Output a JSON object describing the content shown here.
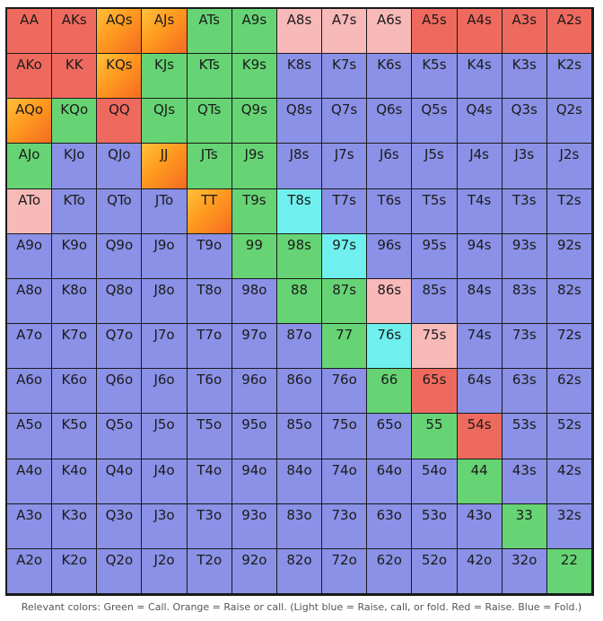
{
  "colors": {
    "fold": "#8a91e6",
    "call": "#66d474",
    "raise": "#ef6a5e",
    "raise_or_call": "#ff9a1f",
    "raise_call_or_fold": "#6ff0ee",
    "light_red": "#f8b9b9"
  },
  "legend": "Relevant colors: Green = Call. Orange = Raise or call. (Light blue = Raise, call, or fold. Red = Raise. Blue = Fold.)",
  "rows": [
    [
      [
        "AA",
        "raise"
      ],
      [
        "AKs",
        "raise"
      ],
      [
        "AQs",
        "rc"
      ],
      [
        "AJs",
        "rc"
      ],
      [
        "ATs",
        "call"
      ],
      [
        "A9s",
        "call"
      ],
      [
        "A8s",
        "mix"
      ],
      [
        "A7s",
        "mix"
      ],
      [
        "A6s",
        "mix"
      ],
      [
        "A5s",
        "raise"
      ],
      [
        "A4s",
        "raise"
      ],
      [
        "A3s",
        "raise"
      ],
      [
        "A2s",
        "raise"
      ]
    ],
    [
      [
        "AKo",
        "raise"
      ],
      [
        "KK",
        "raise"
      ],
      [
        "KQs",
        "rc"
      ],
      [
        "KJs",
        "call"
      ],
      [
        "KTs",
        "call"
      ],
      [
        "K9s",
        "call"
      ],
      [
        "K8s",
        "fold"
      ],
      [
        "K7s",
        "fold"
      ],
      [
        "K6s",
        "fold"
      ],
      [
        "K5s",
        "fold"
      ],
      [
        "K4s",
        "fold"
      ],
      [
        "K3s",
        "fold"
      ],
      [
        "K2s",
        "fold"
      ]
    ],
    [
      [
        "AQo",
        "rc"
      ],
      [
        "KQo",
        "call"
      ],
      [
        "QQ",
        "raise"
      ],
      [
        "QJs",
        "call"
      ],
      [
        "QTs",
        "call"
      ],
      [
        "Q9s",
        "call"
      ],
      [
        "Q8s",
        "fold"
      ],
      [
        "Q7s",
        "fold"
      ],
      [
        "Q6s",
        "fold"
      ],
      [
        "Q5s",
        "fold"
      ],
      [
        "Q4s",
        "fold"
      ],
      [
        "Q3s",
        "fold"
      ],
      [
        "Q2s",
        "fold"
      ]
    ],
    [
      [
        "AJo",
        "call"
      ],
      [
        "KJo",
        "fold"
      ],
      [
        "QJo",
        "fold"
      ],
      [
        "JJ",
        "rc"
      ],
      [
        "JTs",
        "call"
      ],
      [
        "J9s",
        "call"
      ],
      [
        "J8s",
        "fold"
      ],
      [
        "J7s",
        "fold"
      ],
      [
        "J6s",
        "fold"
      ],
      [
        "J5s",
        "fold"
      ],
      [
        "J4s",
        "fold"
      ],
      [
        "J3s",
        "fold"
      ],
      [
        "J2s",
        "fold"
      ]
    ],
    [
      [
        "ATo",
        "mix"
      ],
      [
        "KTo",
        "fold"
      ],
      [
        "QTo",
        "fold"
      ],
      [
        "JTo",
        "fold"
      ],
      [
        "TT",
        "rc"
      ],
      [
        "T9s",
        "call"
      ],
      [
        "T8s",
        "rcf"
      ],
      [
        "T7s",
        "fold"
      ],
      [
        "T6s",
        "fold"
      ],
      [
        "T5s",
        "fold"
      ],
      [
        "T4s",
        "fold"
      ],
      [
        "T3s",
        "fold"
      ],
      [
        "T2s",
        "fold"
      ]
    ],
    [
      [
        "A9o",
        "fold"
      ],
      [
        "K9o",
        "fold"
      ],
      [
        "Q9o",
        "fold"
      ],
      [
        "J9o",
        "fold"
      ],
      [
        "T9o",
        "fold"
      ],
      [
        "99",
        "call"
      ],
      [
        "98s",
        "call"
      ],
      [
        "97s",
        "rcf"
      ],
      [
        "96s",
        "fold"
      ],
      [
        "95s",
        "fold"
      ],
      [
        "94s",
        "fold"
      ],
      [
        "93s",
        "fold"
      ],
      [
        "92s",
        "fold"
      ]
    ],
    [
      [
        "A8o",
        "fold"
      ],
      [
        "K8o",
        "fold"
      ],
      [
        "Q8o",
        "fold"
      ],
      [
        "J8o",
        "fold"
      ],
      [
        "T8o",
        "fold"
      ],
      [
        "98o",
        "fold"
      ],
      [
        "88",
        "call"
      ],
      [
        "87s",
        "call"
      ],
      [
        "86s",
        "mix"
      ],
      [
        "85s",
        "fold"
      ],
      [
        "84s",
        "fold"
      ],
      [
        "83s",
        "fold"
      ],
      [
        "82s",
        "fold"
      ]
    ],
    [
      [
        "A7o",
        "fold"
      ],
      [
        "K7o",
        "fold"
      ],
      [
        "Q7o",
        "fold"
      ],
      [
        "J7o",
        "fold"
      ],
      [
        "T7o",
        "fold"
      ],
      [
        "97o",
        "fold"
      ],
      [
        "87o",
        "fold"
      ],
      [
        "77",
        "call"
      ],
      [
        "76s",
        "rcf"
      ],
      [
        "75s",
        "mix"
      ],
      [
        "74s",
        "fold"
      ],
      [
        "73s",
        "fold"
      ],
      [
        "72s",
        "fold"
      ]
    ],
    [
      [
        "A6o",
        "fold"
      ],
      [
        "K6o",
        "fold"
      ],
      [
        "Q6o",
        "fold"
      ],
      [
        "J6o",
        "fold"
      ],
      [
        "T6o",
        "fold"
      ],
      [
        "96o",
        "fold"
      ],
      [
        "86o",
        "fold"
      ],
      [
        "76o",
        "fold"
      ],
      [
        "66",
        "call"
      ],
      [
        "65s",
        "raise"
      ],
      [
        "64s",
        "fold"
      ],
      [
        "63s",
        "fold"
      ],
      [
        "62s",
        "fold"
      ]
    ],
    [
      [
        "A5o",
        "fold"
      ],
      [
        "K5o",
        "fold"
      ],
      [
        "Q5o",
        "fold"
      ],
      [
        "J5o",
        "fold"
      ],
      [
        "T5o",
        "fold"
      ],
      [
        "95o",
        "fold"
      ],
      [
        "85o",
        "fold"
      ],
      [
        "75o",
        "fold"
      ],
      [
        "65o",
        "fold"
      ],
      [
        "55",
        "call"
      ],
      [
        "54s",
        "raise"
      ],
      [
        "53s",
        "fold"
      ],
      [
        "52s",
        "fold"
      ]
    ],
    [
      [
        "A4o",
        "fold"
      ],
      [
        "K4o",
        "fold"
      ],
      [
        "Q4o",
        "fold"
      ],
      [
        "J4o",
        "fold"
      ],
      [
        "T4o",
        "fold"
      ],
      [
        "94o",
        "fold"
      ],
      [
        "84o",
        "fold"
      ],
      [
        "74o",
        "fold"
      ],
      [
        "64o",
        "fold"
      ],
      [
        "54o",
        "fold"
      ],
      [
        "44",
        "call"
      ],
      [
        "43s",
        "fold"
      ],
      [
        "42s",
        "fold"
      ]
    ],
    [
      [
        "A3o",
        "fold"
      ],
      [
        "K3o",
        "fold"
      ],
      [
        "Q3o",
        "fold"
      ],
      [
        "J3o",
        "fold"
      ],
      [
        "T3o",
        "fold"
      ],
      [
        "93o",
        "fold"
      ],
      [
        "83o",
        "fold"
      ],
      [
        "73o",
        "fold"
      ],
      [
        "63o",
        "fold"
      ],
      [
        "53o",
        "fold"
      ],
      [
        "43o",
        "fold"
      ],
      [
        "33",
        "call"
      ],
      [
        "32s",
        "fold"
      ]
    ],
    [
      [
        "A2o",
        "fold"
      ],
      [
        "K2o",
        "fold"
      ],
      [
        "Q2o",
        "fold"
      ],
      [
        "J2o",
        "fold"
      ],
      [
        "T2o",
        "fold"
      ],
      [
        "92o",
        "fold"
      ],
      [
        "82o",
        "fold"
      ],
      [
        "72o",
        "fold"
      ],
      [
        "62o",
        "fold"
      ],
      [
        "52o",
        "fold"
      ],
      [
        "42o",
        "fold"
      ],
      [
        "32o",
        "fold"
      ],
      [
        "22",
        "call"
      ]
    ]
  ]
}
